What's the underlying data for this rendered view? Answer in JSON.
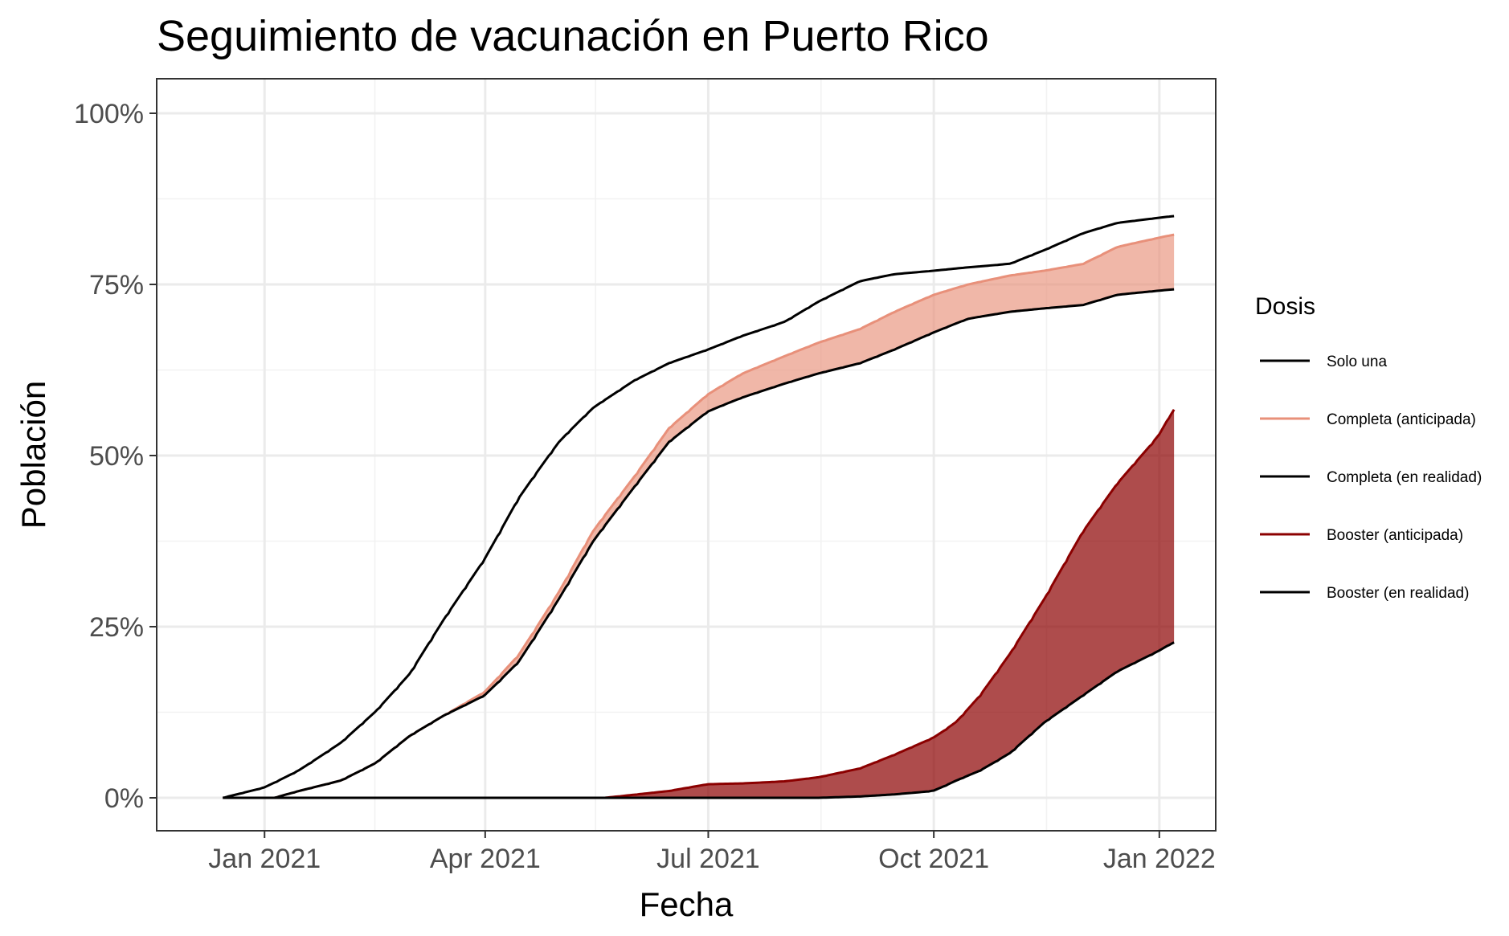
{
  "chart_data": {
    "type": "line",
    "title": "Seguimiento de vacunación en Puerto Rico",
    "xlabel": "Fecha",
    "ylabel": "Población",
    "x_ticks": [
      "Jan 2021",
      "Apr 2021",
      "Jul 2021",
      "Oct 2021",
      "Jan 2022"
    ],
    "y_ticks": [
      "0%",
      "25%",
      "50%",
      "75%",
      "100%"
    ],
    "ylim": [
      0,
      100
    ],
    "xlim": [
      "2020-11-18",
      "2022-01-24"
    ],
    "grid": true,
    "legend_position": "right",
    "legend": {
      "title": "Dosis",
      "entries": [
        {
          "label": "Solo una",
          "color": "#000000"
        },
        {
          "label": "Completa (anticipada)",
          "color": "#e8907a"
        },
        {
          "label": "Completa (en realidad)",
          "color": "#000000"
        },
        {
          "label": "Booster (anticipada)",
          "color": "#8b0000"
        },
        {
          "label": "Booster (en realidad)",
          "color": "#000000"
        }
      ]
    },
    "ribbons": [
      {
        "between": [
          "Completa (en realidad)",
          "Completa (anticipada)"
        ],
        "fill": "#e8907a",
        "opacity": 0.65
      },
      {
        "between": [
          "Booster (en realidad)",
          "Booster (anticipada)"
        ],
        "fill": "#8b0000",
        "opacity": 0.7
      }
    ],
    "series": [
      {
        "name": "Solo una",
        "color": "#000000",
        "points": [
          [
            "2020-12-15",
            0
          ],
          [
            "2021-01-01",
            1.5
          ],
          [
            "2021-01-15",
            4
          ],
          [
            "2021-02-01",
            8
          ],
          [
            "2021-02-15",
            12.5
          ],
          [
            "2021-03-01",
            18
          ],
          [
            "2021-03-15",
            26
          ],
          [
            "2021-04-01",
            35
          ],
          [
            "2021-04-15",
            44
          ],
          [
            "2021-05-01",
            52
          ],
          [
            "2021-05-15",
            57
          ],
          [
            "2021-06-01",
            61
          ],
          [
            "2021-06-15",
            63.5
          ],
          [
            "2021-07-01",
            65.5
          ],
          [
            "2021-07-15",
            67.5
          ],
          [
            "2021-08-01",
            69.5
          ],
          [
            "2021-08-15",
            72.5
          ],
          [
            "2021-09-01",
            75.5
          ],
          [
            "2021-09-15",
            76.5
          ],
          [
            "2021-10-01",
            77
          ],
          [
            "2021-10-15",
            77.5
          ],
          [
            "2021-11-01",
            78
          ],
          [
            "2021-11-15",
            80
          ],
          [
            "2021-12-01",
            82.5
          ],
          [
            "2021-12-15",
            84
          ],
          [
            "2022-01-07",
            85
          ]
        ]
      },
      {
        "name": "Completa (anticipada)",
        "color": "#e8907a",
        "points": [
          [
            "2021-01-05",
            0
          ],
          [
            "2021-01-15",
            1
          ],
          [
            "2021-02-01",
            2.5
          ],
          [
            "2021-02-15",
            5
          ],
          [
            "2021-03-01",
            9
          ],
          [
            "2021-03-15",
            12
          ],
          [
            "2021-04-01",
            15.5
          ],
          [
            "2021-04-15",
            21
          ],
          [
            "2021-05-01",
            30
          ],
          [
            "2021-05-15",
            39
          ],
          [
            "2021-06-01",
            47
          ],
          [
            "2021-06-15",
            54
          ],
          [
            "2021-07-01",
            59
          ],
          [
            "2021-07-15",
            62
          ],
          [
            "2021-08-01",
            64.5
          ],
          [
            "2021-08-15",
            66.5
          ],
          [
            "2021-09-01",
            68.5
          ],
          [
            "2021-09-15",
            71
          ],
          [
            "2021-10-01",
            73.5
          ],
          [
            "2021-10-15",
            75
          ],
          [
            "2021-11-01",
            76.3
          ],
          [
            "2021-11-15",
            77
          ],
          [
            "2021-12-01",
            78
          ],
          [
            "2021-12-15",
            80.5
          ],
          [
            "2022-01-07",
            82.3
          ]
        ]
      },
      {
        "name": "Completa (en realidad)",
        "color": "#000000",
        "points": [
          [
            "2021-01-05",
            0
          ],
          [
            "2021-01-15",
            1
          ],
          [
            "2021-02-01",
            2.5
          ],
          [
            "2021-02-15",
            5
          ],
          [
            "2021-03-01",
            9
          ],
          [
            "2021-03-15",
            12
          ],
          [
            "2021-04-01",
            15
          ],
          [
            "2021-04-15",
            20
          ],
          [
            "2021-05-01",
            29
          ],
          [
            "2021-05-15",
            37.5
          ],
          [
            "2021-06-01",
            45.5
          ],
          [
            "2021-06-15",
            52
          ],
          [
            "2021-07-01",
            56.5
          ],
          [
            "2021-07-15",
            58.5
          ],
          [
            "2021-08-01",
            60.5
          ],
          [
            "2021-08-15",
            62
          ],
          [
            "2021-09-01",
            63.5
          ],
          [
            "2021-09-15",
            65.5
          ],
          [
            "2021-10-01",
            68
          ],
          [
            "2021-10-15",
            70
          ],
          [
            "2021-11-01",
            71
          ],
          [
            "2021-11-15",
            71.5
          ],
          [
            "2021-12-01",
            72
          ],
          [
            "2021-12-15",
            73.5
          ],
          [
            "2022-01-07",
            74.3
          ]
        ]
      },
      {
        "name": "Booster (anticipada)",
        "color": "#8b0000",
        "points": [
          [
            "2020-12-15",
            0
          ],
          [
            "2021-05-20",
            0
          ],
          [
            "2021-06-15",
            1
          ],
          [
            "2021-07-01",
            2
          ],
          [
            "2021-07-15",
            2.1
          ],
          [
            "2021-08-01",
            2.4
          ],
          [
            "2021-08-15",
            3
          ],
          [
            "2021-09-01",
            4.3
          ],
          [
            "2021-09-15",
            6.3
          ],
          [
            "2021-10-01",
            8.8
          ],
          [
            "2021-10-10",
            11
          ],
          [
            "2021-10-20",
            15
          ],
          [
            "2021-11-01",
            21
          ],
          [
            "2021-11-15",
            29
          ],
          [
            "2021-12-01",
            39
          ],
          [
            "2021-12-15",
            46
          ],
          [
            "2022-01-01",
            53
          ],
          [
            "2022-01-07",
            57
          ]
        ]
      },
      {
        "name": "Booster (en realidad)",
        "color": "#000000",
        "points": [
          [
            "2020-12-15",
            0
          ],
          [
            "2021-08-15",
            0
          ],
          [
            "2021-09-01",
            0.2
          ],
          [
            "2021-09-15",
            0.5
          ],
          [
            "2021-10-01",
            1
          ],
          [
            "2021-10-10",
            2.5
          ],
          [
            "2021-10-20",
            4
          ],
          [
            "2021-11-01",
            6.5
          ],
          [
            "2021-11-15",
            11
          ],
          [
            "2021-12-01",
            15
          ],
          [
            "2021-12-15",
            18.5
          ],
          [
            "2022-01-01",
            21.5
          ],
          [
            "2022-01-07",
            22.8
          ]
        ]
      }
    ]
  }
}
